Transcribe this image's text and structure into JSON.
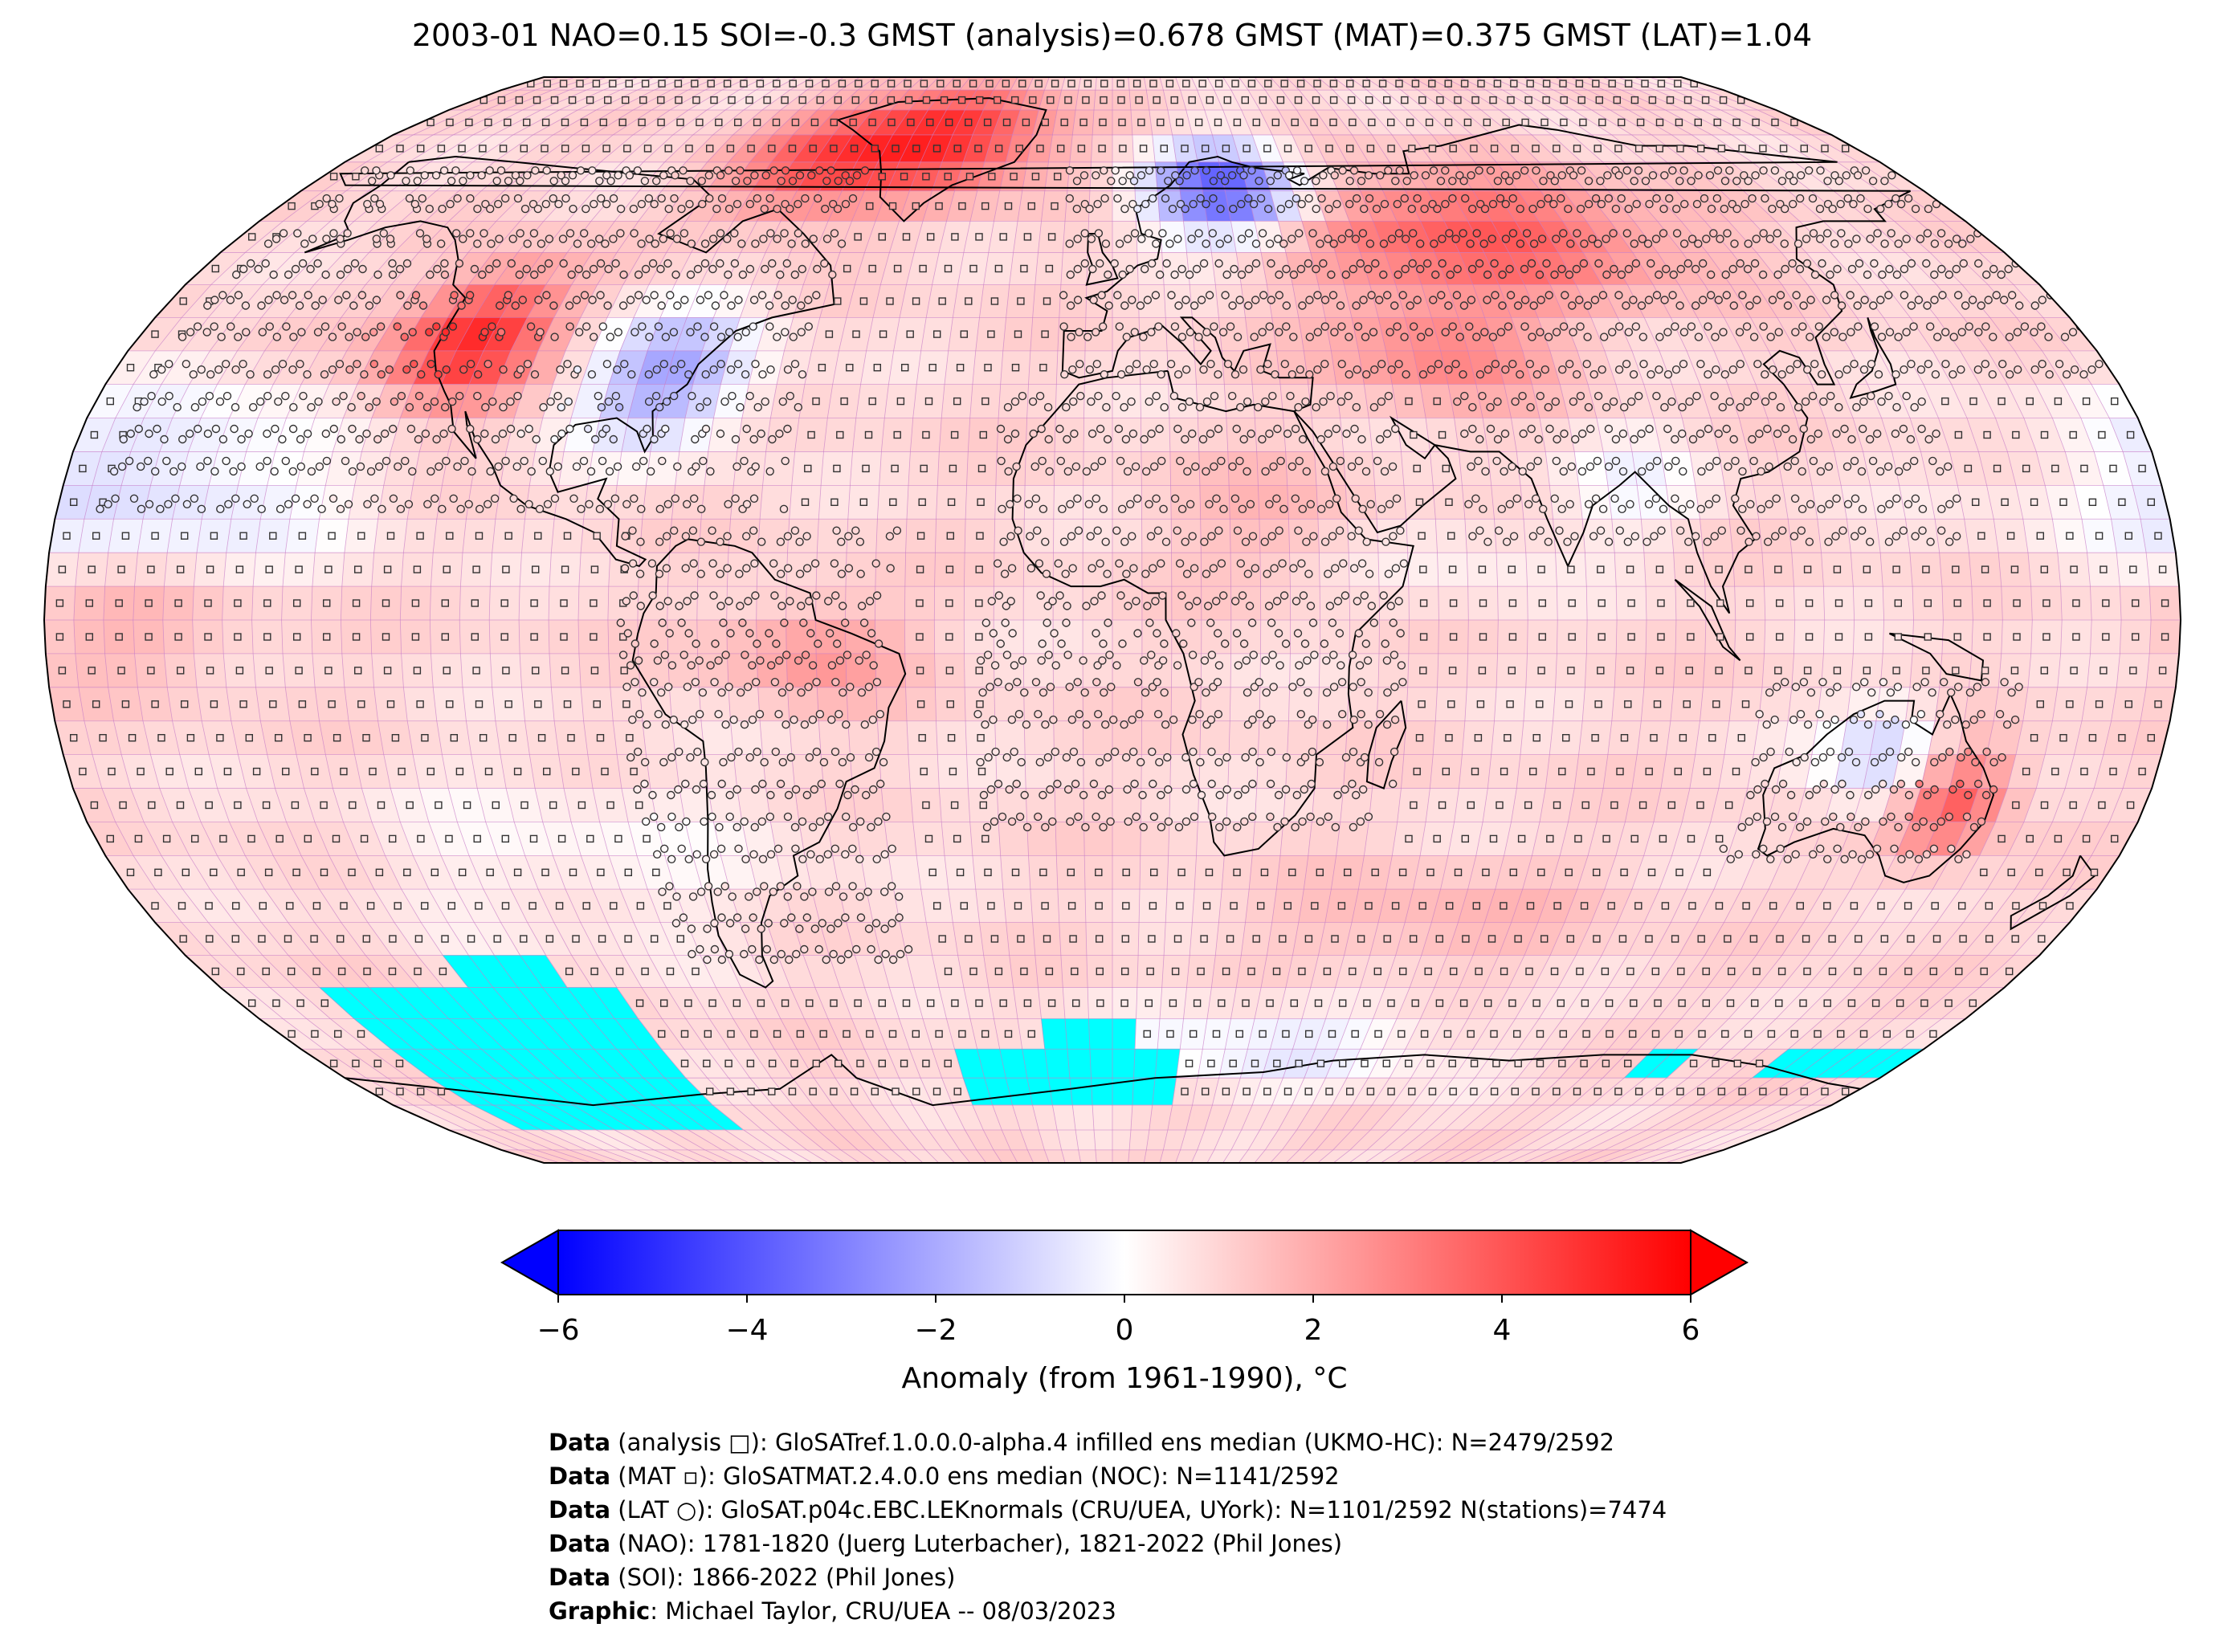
{
  "title": "2003-01 NAO=0.15 SOI=-0.3 GMST (analysis)=0.678 GMST (MAT)=0.375 GMST (LAT)=1.04",
  "colorbar": {
    "label": "Anomaly (from 1961-1990), °C",
    "range": [
      -6,
      6
    ],
    "ticks": [
      -6,
      -4,
      -2,
      0,
      2,
      4,
      6
    ],
    "tick_labels": [
      "−6",
      "−4",
      "−2",
      "0",
      "2",
      "4",
      "6"
    ],
    "colors": {
      "min": "#0000ff",
      "mid": "#ffffff",
      "max": "#ff0000",
      "missing": "#00ffff"
    }
  },
  "map": {
    "projection": "Robinson",
    "grid": "5° lat/lon",
    "missing_regions_color": "#00ffff",
    "gridline_color": "#c87ec8",
    "markers": {
      "analysis": "square",
      "mat": "small square",
      "lat": "circle"
    }
  },
  "legend": [
    {
      "bold": "Data",
      "text": " (analysis □): GloSATref.1.0.0.0-alpha.4 infilled ens median (UKMO-HC): N=2479/2592"
    },
    {
      "bold": "Data",
      "text": " (MAT ▫): GloSATMAT.2.4.0.0 ens median (NOC): N=1141/2592"
    },
    {
      "bold": "Data",
      "text": " (LAT ○): GloSAT.p04c.EBC.LEKnormals (CRU/UEA, UYork): N=1101/2592 N(stations)=7474"
    },
    {
      "bold": "Data",
      "text": " (NAO): 1781-1820 (Juerg Luterbacher), 1821-2022 (Phil Jones)"
    },
    {
      "bold": "Data",
      "text": " (SOI): 1866-2022 (Phil Jones)"
    },
    {
      "bold": "Graphic",
      "text": ": Michael Taylor, CRU/UEA -- 08/03/2023"
    }
  ]
}
